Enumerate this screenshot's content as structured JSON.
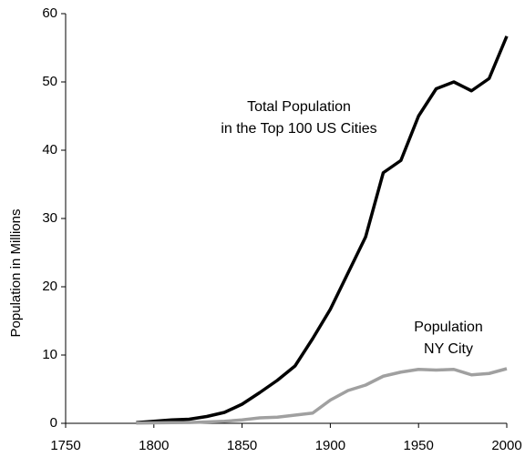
{
  "chart_data": {
    "type": "line",
    "y_label": "Population in Millions",
    "x": [
      1790,
      1800,
      1810,
      1820,
      1830,
      1840,
      1850,
      1860,
      1870,
      1880,
      1890,
      1900,
      1910,
      1920,
      1930,
      1940,
      1950,
      1960,
      1970,
      1980,
      1990,
      2000
    ],
    "series": [
      {
        "color": "#000000",
        "values": [
          0.1,
          0.3,
          0.5,
          0.6,
          1.0,
          1.6,
          2.8,
          4.5,
          6.3,
          8.4,
          12.4,
          16.7,
          22,
          27.3,
          36.7,
          38.5,
          45,
          49,
          50,
          48.7,
          50.5,
          56.7
        ]
      },
      {
        "color": "#a0a0a0",
        "values": [
          0.03,
          0.06,
          0.1,
          0.12,
          0.2,
          0.3,
          0.5,
          0.8,
          0.9,
          1.2,
          1.5,
          3.4,
          4.8,
          5.6,
          6.9,
          7.5,
          7.9,
          7.8,
          7.9,
          7.1,
          7.3,
          8.0
        ]
      }
    ],
    "annotations": [
      {
        "lines": [
          "Total Population",
          "in the Top 100 US Cities"
        ]
      },
      {
        "lines": [
          "Population",
          "NY City"
        ]
      }
    ],
    "xlim": [
      1750,
      2000
    ],
    "xticks": [
      1750,
      1800,
      1850,
      1900,
      1950,
      2000
    ],
    "ylim": [
      0,
      60
    ],
    "yticks": [
      0,
      10,
      20,
      30,
      40,
      50,
      60
    ],
    "grid": false
  }
}
